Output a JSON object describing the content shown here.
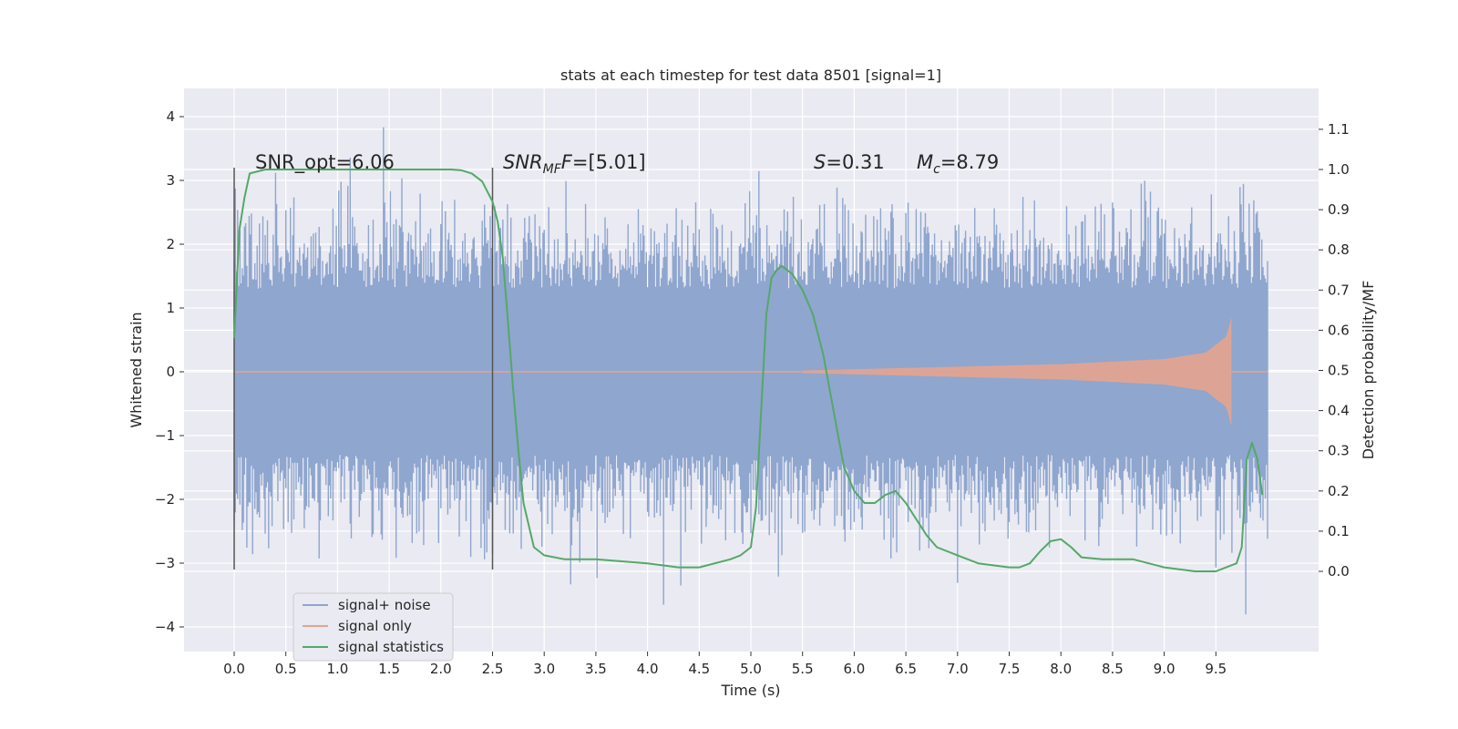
{
  "chart_data": {
    "type": "line",
    "title": "stats at each timestep for test data 8501 [signal=1]",
    "xlabel": "Time (s)",
    "ylabel_left": "Whitened strain",
    "ylabel_right": "Detection probability/MF",
    "xlim": [
      -0.5,
      10.5
    ],
    "ylim_left": [
      -4.4,
      4.4
    ],
    "ylim_right": [
      -0.2,
      1.2
    ],
    "x_ticks": [
      "0.0",
      "0.5",
      "1.0",
      "1.5",
      "2.0",
      "2.5",
      "3.0",
      "3.5",
      "4.0",
      "4.5",
      "5.0",
      "5.5",
      "6.0",
      "6.5",
      "7.0",
      "7.5",
      "8.0",
      "8.5",
      "9.0",
      "9.5"
    ],
    "y_left_ticks": [
      "4",
      "3",
      "2",
      "1",
      "0",
      "−1",
      "−2",
      "−3",
      "−4"
    ],
    "y_right_ticks": [
      "1.1",
      "1.0",
      "0.9",
      "0.8",
      "0.7",
      "0.6",
      "0.5",
      "0.4",
      "0.3",
      "0.2",
      "0.1",
      "0.0"
    ],
    "grid": true,
    "legend_position": "lower-left",
    "annotations": {
      "snr_opt": "SNR_opt=6.06",
      "snr_mf_main": "SNR",
      "snr_mf_sub": "MF",
      "snr_mf_italic": "F",
      "snr_mf_value": "=[5.01]",
      "s_symbol": "S",
      "s_value": "=0.31",
      "mc_symbol": "M",
      "mc_sub": "c",
      "mc_value": "=8.79"
    },
    "vertical_markers_x": [
      0.0,
      2.5
    ],
    "series": [
      {
        "name": "signal+ noise",
        "color": "#8fa6cf",
        "x_range": [
          0.0,
          10.0
        ],
        "envelope_core": [
          -1.3,
          1.3
        ],
        "peak_extent": [
          -4.0,
          4.05
        ]
      },
      {
        "name": "signal only",
        "color": "#e5a48e",
        "x_range": [
          5.5,
          9.65
        ],
        "amplitude_at_x": [
          [
            5.5,
            0.02
          ],
          [
            7.0,
            0.08
          ],
          [
            8.0,
            0.12
          ],
          [
            9.0,
            0.2
          ],
          [
            9.4,
            0.3
          ],
          [
            9.6,
            0.55
          ],
          [
            9.65,
            0.85
          ]
        ]
      },
      {
        "name": "signal statistics",
        "color": "#55a868",
        "axis": "right",
        "x": [
          0.0,
          0.05,
          0.1,
          0.15,
          0.3,
          0.6,
          1.0,
          1.5,
          2.0,
          2.1,
          2.2,
          2.3,
          2.4,
          2.5,
          2.55,
          2.6,
          2.65,
          2.7,
          2.75,
          2.8,
          2.9,
          3.0,
          3.2,
          3.5,
          4.0,
          4.3,
          4.5,
          4.8,
          4.9,
          5.0,
          5.05,
          5.1,
          5.15,
          5.2,
          5.25,
          5.3,
          5.4,
          5.5,
          5.6,
          5.7,
          5.8,
          5.9,
          6.0,
          6.1,
          6.2,
          6.3,
          6.4,
          6.5,
          6.6,
          6.7,
          6.8,
          7.0,
          7.2,
          7.5,
          7.6,
          7.7,
          7.8,
          7.9,
          8.0,
          8.1,
          8.2,
          8.4,
          8.7,
          9.0,
          9.3,
          9.5,
          9.6,
          9.7,
          9.75,
          9.8,
          9.85,
          9.9,
          9.95
        ],
        "y": [
          0.58,
          0.85,
          0.93,
          0.99,
          1.0,
          1.0,
          1.0,
          1.0,
          1.0,
          1.0,
          0.998,
          0.99,
          0.97,
          0.92,
          0.87,
          0.78,
          0.62,
          0.45,
          0.3,
          0.17,
          0.06,
          0.04,
          0.03,
          0.03,
          0.02,
          0.01,
          0.01,
          0.03,
          0.04,
          0.06,
          0.16,
          0.4,
          0.64,
          0.73,
          0.75,
          0.76,
          0.74,
          0.7,
          0.64,
          0.54,
          0.4,
          0.26,
          0.2,
          0.17,
          0.17,
          0.19,
          0.2,
          0.17,
          0.13,
          0.09,
          0.06,
          0.04,
          0.02,
          0.01,
          0.01,
          0.02,
          0.05,
          0.075,
          0.08,
          0.06,
          0.035,
          0.03,
          0.03,
          0.01,
          0.0,
          0.0,
          0.01,
          0.02,
          0.06,
          0.28,
          0.32,
          0.28,
          0.19
        ]
      }
    ]
  }
}
